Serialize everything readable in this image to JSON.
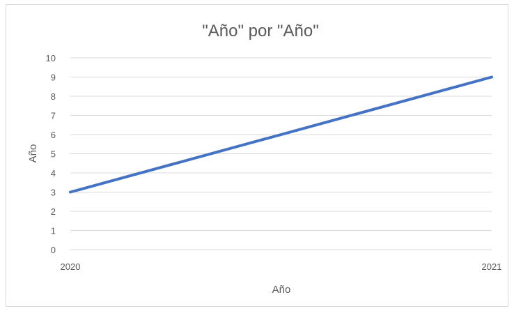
{
  "chart_data": {
    "type": "line",
    "title": "\"Año\" por \"Año\"",
    "xlabel": "Año",
    "ylabel": "Año",
    "x": [
      2020,
      2021
    ],
    "x_tick_labels": [
      "2020",
      "2021"
    ],
    "y_tick_labels": [
      "0",
      "1",
      "2",
      "3",
      "4",
      "5",
      "6",
      "7",
      "8",
      "9",
      "10"
    ],
    "series": [
      {
        "values": [
          3,
          9
        ],
        "color": "#4472c4"
      }
    ],
    "ylim": [
      0,
      10
    ],
    "grid": "horizontal",
    "legend": "none"
  }
}
